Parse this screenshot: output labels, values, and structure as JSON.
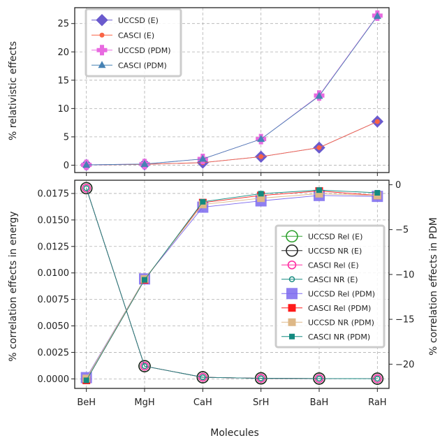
{
  "chart_data": [
    {
      "type": "line",
      "panel": "top",
      "ylabel": "% relativistic effects",
      "xlabel": "",
      "categories": [
        "BeH",
        "MgH",
        "CaH",
        "SrH",
        "BaH",
        "RaH"
      ],
      "ylim": [
        -1.3,
        27.8
      ],
      "yticks": [
        0,
        5,
        10,
        15,
        20,
        25
      ],
      "grid": true,
      "legend_position": "top-left",
      "series": [
        {
          "name": "UCCSD (E)",
          "values": [
            0.05,
            0.15,
            0.45,
            1.5,
            3.1,
            7.7
          ],
          "color": "#6a5acd",
          "marker": "diamond"
        },
        {
          "name": "CASCI (E)",
          "values": [
            0.05,
            0.15,
            0.45,
            1.5,
            3.1,
            7.7
          ],
          "color": "#fa6446",
          "marker": "circle"
        },
        {
          "name": "UCCSD (PDM)",
          "values": [
            0.05,
            0.2,
            1.1,
            4.6,
            12.3,
            26.4
          ],
          "color": "#e86ae0",
          "marker": "plus"
        },
        {
          "name": "CASCI (PDM)",
          "values": [
            0.05,
            0.2,
            1.1,
            4.6,
            12.2,
            26.3
          ],
          "color": "#4682b4",
          "marker": "triangle"
        }
      ]
    },
    {
      "type": "line",
      "panel": "bottom",
      "xlabel": "Molecules",
      "ylabel": "% correlation effects in energy",
      "ylabel_right": "% correlation effects in PDM",
      "categories": [
        "BeH",
        "MgH",
        "CaH",
        "SrH",
        "BaH",
        "RaH"
      ],
      "ylim": [
        -0.0009,
        0.01875
      ],
      "yticks": [
        "0.0000",
        "0.0025",
        "0.0050",
        "0.0075",
        "0.0100",
        "0.0125",
        "0.0150",
        "0.0175"
      ],
      "ylim_right": [
        -22.7,
        0.5
      ],
      "yticks_right": [
        "0",
        "−5",
        "−10",
        "−15",
        "−20"
      ],
      "grid": true,
      "legend_position": "center-right",
      "series": [
        {
          "name": "UCCSD Rel (E)",
          "axis": "left",
          "values": [
            0.018,
            0.0012,
            0.00015,
            5e-05,
            3e-05,
            2e-05
          ],
          "color": "#2ca02c",
          "marker": "open-circle-large"
        },
        {
          "name": "UCCSD NR (E)",
          "axis": "left",
          "values": [
            0.018,
            0.0012,
            0.00015,
            5e-05,
            3e-05,
            2e-05
          ],
          "color": "#222222",
          "marker": "open-circle-large"
        },
        {
          "name": "CASCI Rel (E)",
          "axis": "left",
          "values": [
            0.018,
            0.0012,
            0.00015,
            5e-05,
            3e-05,
            2e-05
          ],
          "color": "#ff2aa0",
          "marker": "open-circle"
        },
        {
          "name": "CASCI NR (E)",
          "axis": "left",
          "values": [
            0.018,
            0.0012,
            0.00015,
            5e-05,
            3e-05,
            2e-05
          ],
          "color": "#178a80",
          "marker": "open-circle-small"
        },
        {
          "name": "UCCSD Rel (PDM)",
          "axis": "right",
          "values": [
            -21.5,
            -10.5,
            -2.5,
            -1.8,
            -1.2,
            -1.3
          ],
          "color": "#7b68ee",
          "marker": "square-large"
        },
        {
          "name": "CASCI Rel (PDM)",
          "axis": "right",
          "values": [
            -21.8,
            -10.6,
            -2.0,
            -1.2,
            -0.7,
            -1.2
          ],
          "color": "#ff1a1a",
          "marker": "square"
        },
        {
          "name": "UCCSD NR (PDM)",
          "axis": "right",
          "values": [
            -21.6,
            -10.5,
            -2.2,
            -1.5,
            -1.0,
            -1.2
          ],
          "color": "#deb887",
          "marker": "square"
        },
        {
          "name": "CASCI NR (PDM)",
          "axis": "right",
          "values": [
            -21.8,
            -10.6,
            -1.9,
            -1.0,
            -0.6,
            -0.9
          ],
          "color": "#138a80",
          "marker": "square-small"
        }
      ]
    }
  ]
}
